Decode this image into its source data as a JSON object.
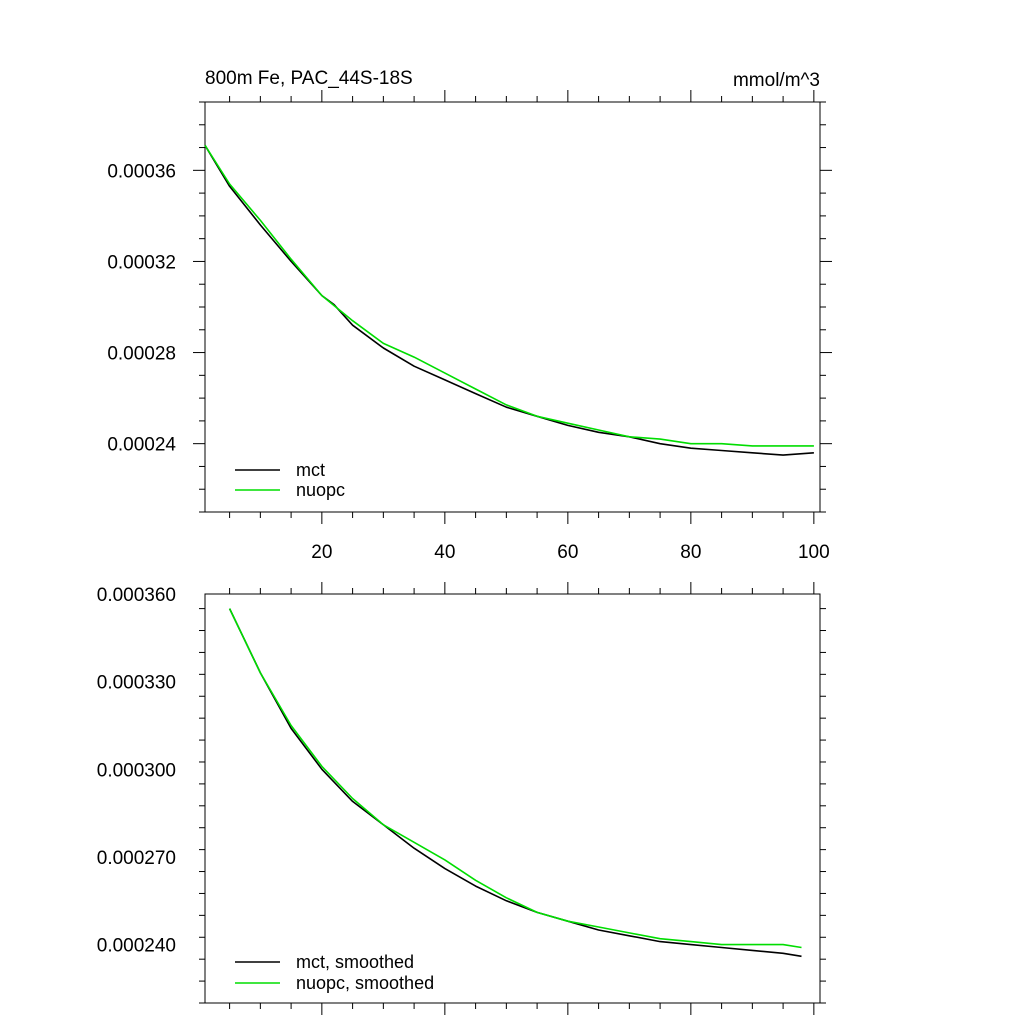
{
  "title_left": "800m Fe, PAC_44S-18S",
  "title_right": "mmol/m^3",
  "chart_data": [
    {
      "type": "line",
      "panel": "raw",
      "xlim": [
        1,
        101
      ],
      "ylim": [
        0.00021,
        0.00039
      ],
      "x_ticks": [
        20,
        40,
        60,
        80,
        100
      ],
      "y_ticks": [
        0.00024,
        0.00028,
        0.00032,
        0.00036
      ],
      "y_tick_labels": [
        "0.00024",
        "0.00028",
        "0.00032",
        "0.00036"
      ],
      "legend_position": "bottom-left",
      "series": [
        {
          "name": "mct",
          "color": "#000000",
          "x": [
            1,
            5,
            10,
            15,
            20,
            22,
            25,
            30,
            35,
            40,
            45,
            50,
            55,
            60,
            65,
            70,
            75,
            80,
            85,
            90,
            95,
            100
          ],
          "y": [
            0.000371,
            0.000353,
            0.000336,
            0.00032,
            0.000305,
            0.000301,
            0.000292,
            0.000282,
            0.000274,
            0.000268,
            0.000262,
            0.000256,
            0.000252,
            0.000248,
            0.000245,
            0.000243,
            0.00024,
            0.000238,
            0.000237,
            0.000236,
            0.000235,
            0.000236
          ]
        },
        {
          "name": "nuopc",
          "color": "#00dd00",
          "x": [
            1,
            5,
            10,
            15,
            20,
            25,
            30,
            35,
            40,
            45,
            50,
            55,
            60,
            65,
            70,
            75,
            80,
            85,
            90,
            95,
            100
          ],
          "y": [
            0.000371,
            0.000354,
            0.000338,
            0.000321,
            0.000305,
            0.000294,
            0.000284,
            0.000278,
            0.000271,
            0.000264,
            0.000257,
            0.000252,
            0.000249,
            0.000246,
            0.000243,
            0.000242,
            0.00024,
            0.00024,
            0.000239,
            0.000239,
            0.000239
          ]
        }
      ]
    },
    {
      "type": "line",
      "panel": "smoothed",
      "xlim": [
        1,
        101
      ],
      "ylim": [
        0.00022,
        0.00036
      ],
      "x_ticks": [
        20,
        40,
        60,
        80,
        100
      ],
      "y_ticks": [
        0.00024,
        0.00027,
        0.0003,
        0.00033,
        0.00036
      ],
      "y_tick_labels": [
        "0.000240",
        "0.000270",
        "0.000300",
        "0.000330",
        "0.000360"
      ],
      "legend_position": "bottom-left",
      "series": [
        {
          "name": "mct, smoothed",
          "color": "#000000",
          "x": [
            5,
            10,
            15,
            20,
            25,
            30,
            35,
            40,
            45,
            50,
            55,
            60,
            65,
            70,
            75,
            80,
            85,
            90,
            95,
            98
          ],
          "y": [
            0.000355,
            0.000333,
            0.000314,
            0.0003,
            0.000289,
            0.000281,
            0.000273,
            0.000266,
            0.00026,
            0.000255,
            0.000251,
            0.000248,
            0.000245,
            0.000243,
            0.000241,
            0.00024,
            0.000239,
            0.000238,
            0.000237,
            0.000236
          ]
        },
        {
          "name": "nuopc, smoothed",
          "color": "#00dd00",
          "x": [
            5,
            10,
            15,
            20,
            25,
            30,
            35,
            40,
            45,
            50,
            55,
            60,
            65,
            70,
            75,
            80,
            85,
            90,
            95,
            98
          ],
          "y": [
            0.000355,
            0.000333,
            0.000315,
            0.000301,
            0.00029,
            0.000281,
            0.000275,
            0.000269,
            0.000262,
            0.000256,
            0.000251,
            0.000248,
            0.000246,
            0.000244,
            0.000242,
            0.000241,
            0.00024,
            0.00024,
            0.00024,
            0.000239
          ]
        }
      ]
    }
  ]
}
